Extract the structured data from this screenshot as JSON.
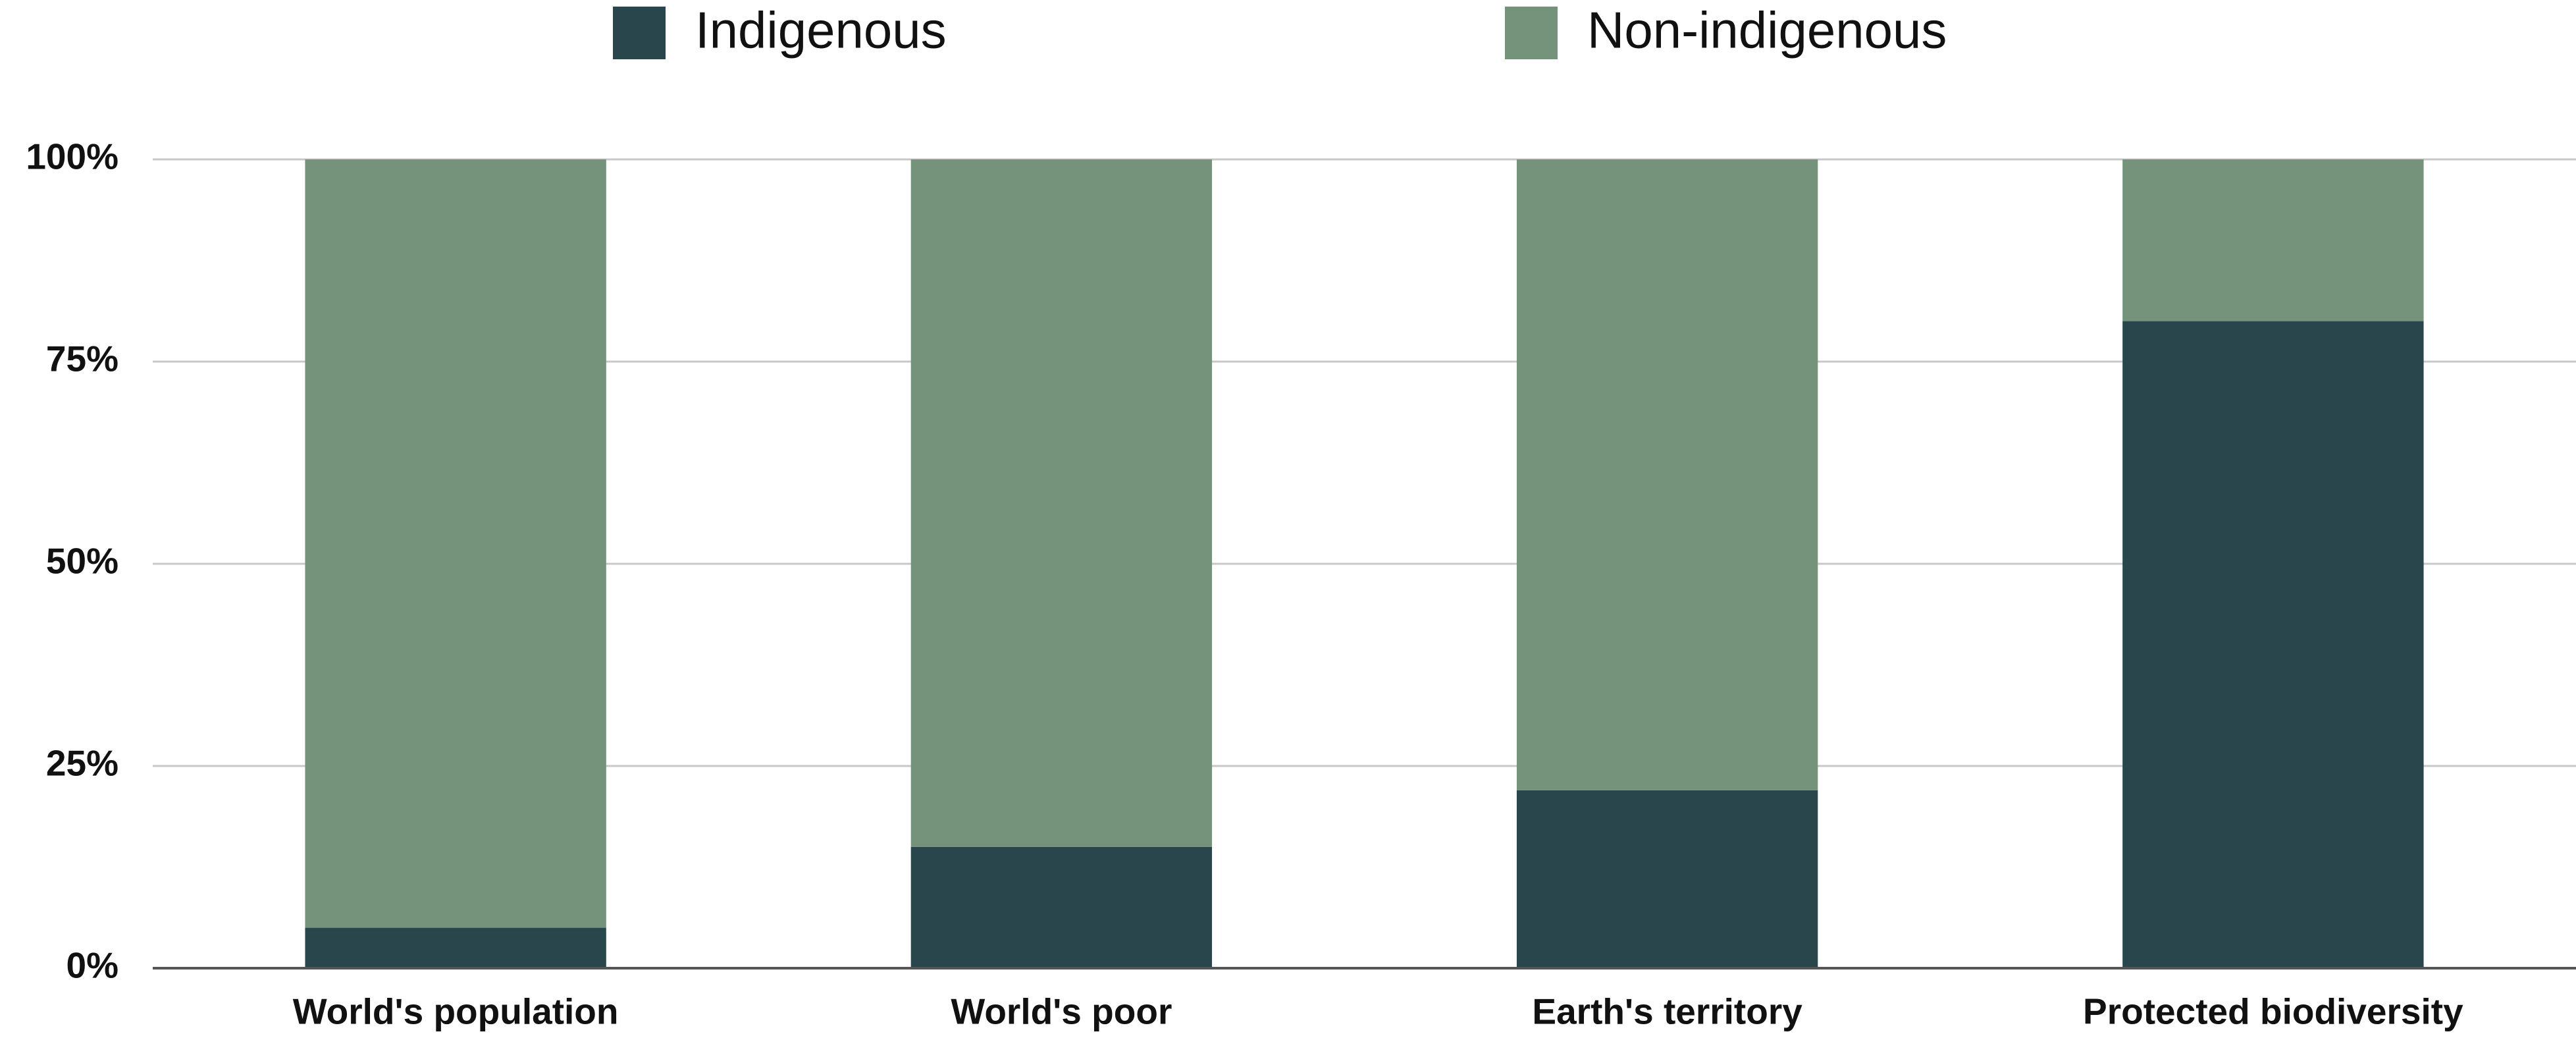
{
  "chart_data": {
    "type": "stacked_bar",
    "categories": [
      "World's population",
      "World's poor",
      "Earth's territory",
      "Protected biodiversity"
    ],
    "series": [
      {
        "name": "Indigenous",
        "color": "#29464d",
        "values": [
          5,
          15,
          22,
          80
        ]
      },
      {
        "name": "Non-indigenous",
        "color": "#74937a",
        "values": [
          95,
          85,
          78,
          20
        ]
      }
    ],
    "ylim": [
      0,
      100
    ],
    "yticks": [
      {
        "value": 0,
        "label": "0%"
      },
      {
        "value": 25,
        "label": "25%"
      },
      {
        "value": 50,
        "label": "50%"
      },
      {
        "value": 75,
        "label": "75%"
      },
      {
        "value": 100,
        "label": "100%"
      }
    ],
    "grid": true,
    "legend": "top"
  }
}
